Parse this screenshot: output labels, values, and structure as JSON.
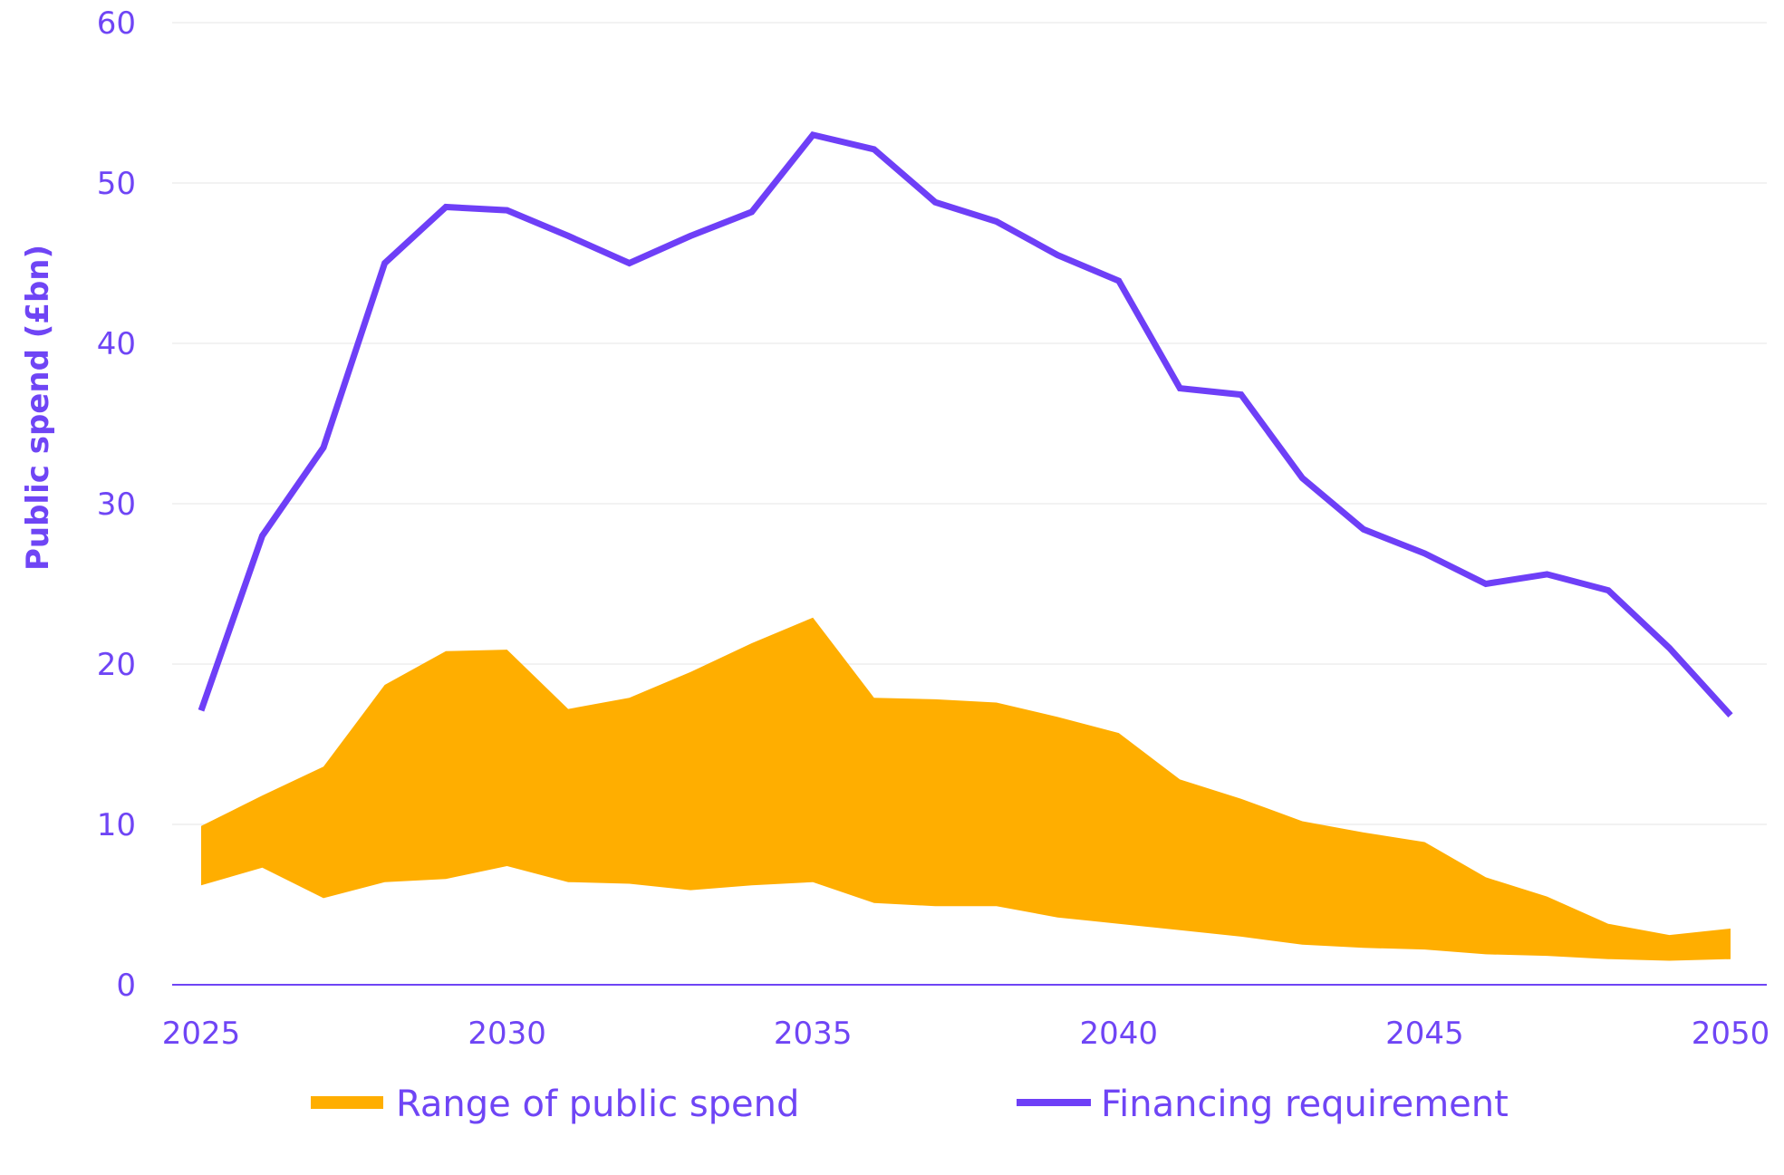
{
  "chart_data": {
    "type": "area",
    "title": "",
    "xlabel": "",
    "ylabel": "Public spend (£bn)",
    "xlim": [
      2025,
      2050
    ],
    "ylim": [
      0,
      60
    ],
    "x_ticks": [
      2025,
      2030,
      2035,
      2040,
      2045,
      2050
    ],
    "y_ticks": [
      0,
      10,
      20,
      30,
      40,
      50,
      60
    ],
    "grid": "horizontal",
    "legend": "bottom",
    "colors": {
      "text": "#6f45f5",
      "line": "#6e3ff7",
      "area": "#ffae00",
      "grid": "#eeeeee",
      "axis": "#6f45f5"
    },
    "x": [
      2025,
      2026,
      2027,
      2028,
      2029,
      2030,
      2031,
      2032,
      2033,
      2034,
      2035,
      2036,
      2037,
      2038,
      2039,
      2040,
      2041,
      2042,
      2043,
      2044,
      2045,
      2046,
      2047,
      2048,
      2049,
      2050
    ],
    "series": [
      {
        "name": "Range of public spend",
        "type": "range-area",
        "low": [
          6.2,
          7.3,
          5.4,
          6.4,
          6.6,
          7.4,
          6.4,
          6.3,
          5.9,
          6.2,
          6.4,
          5.1,
          4.9,
          4.9,
          4.2,
          3.8,
          3.4,
          3.0,
          2.5,
          2.3,
          2.2,
          1.9,
          1.8,
          1.6,
          1.5,
          1.6
        ],
        "high": [
          9.9,
          11.8,
          13.6,
          18.7,
          20.8,
          20.9,
          17.2,
          17.9,
          19.5,
          21.3,
          22.9,
          17.9,
          17.8,
          17.6,
          16.7,
          15.7,
          12.8,
          11.6,
          10.2,
          9.5,
          8.9,
          6.7,
          5.5,
          3.8,
          3.1,
          3.5
        ]
      },
      {
        "name": "Financing requirement",
        "type": "line",
        "values": [
          17.1,
          28.0,
          33.5,
          45.0,
          48.5,
          48.3,
          46.7,
          45.0,
          46.7,
          48.2,
          53.0,
          52.1,
          48.8,
          47.6,
          45.5,
          43.9,
          37.2,
          36.8,
          31.6,
          28.4,
          26.9,
          25.0,
          25.6,
          24.6,
          21.0,
          16.8
        ]
      }
    ]
  }
}
